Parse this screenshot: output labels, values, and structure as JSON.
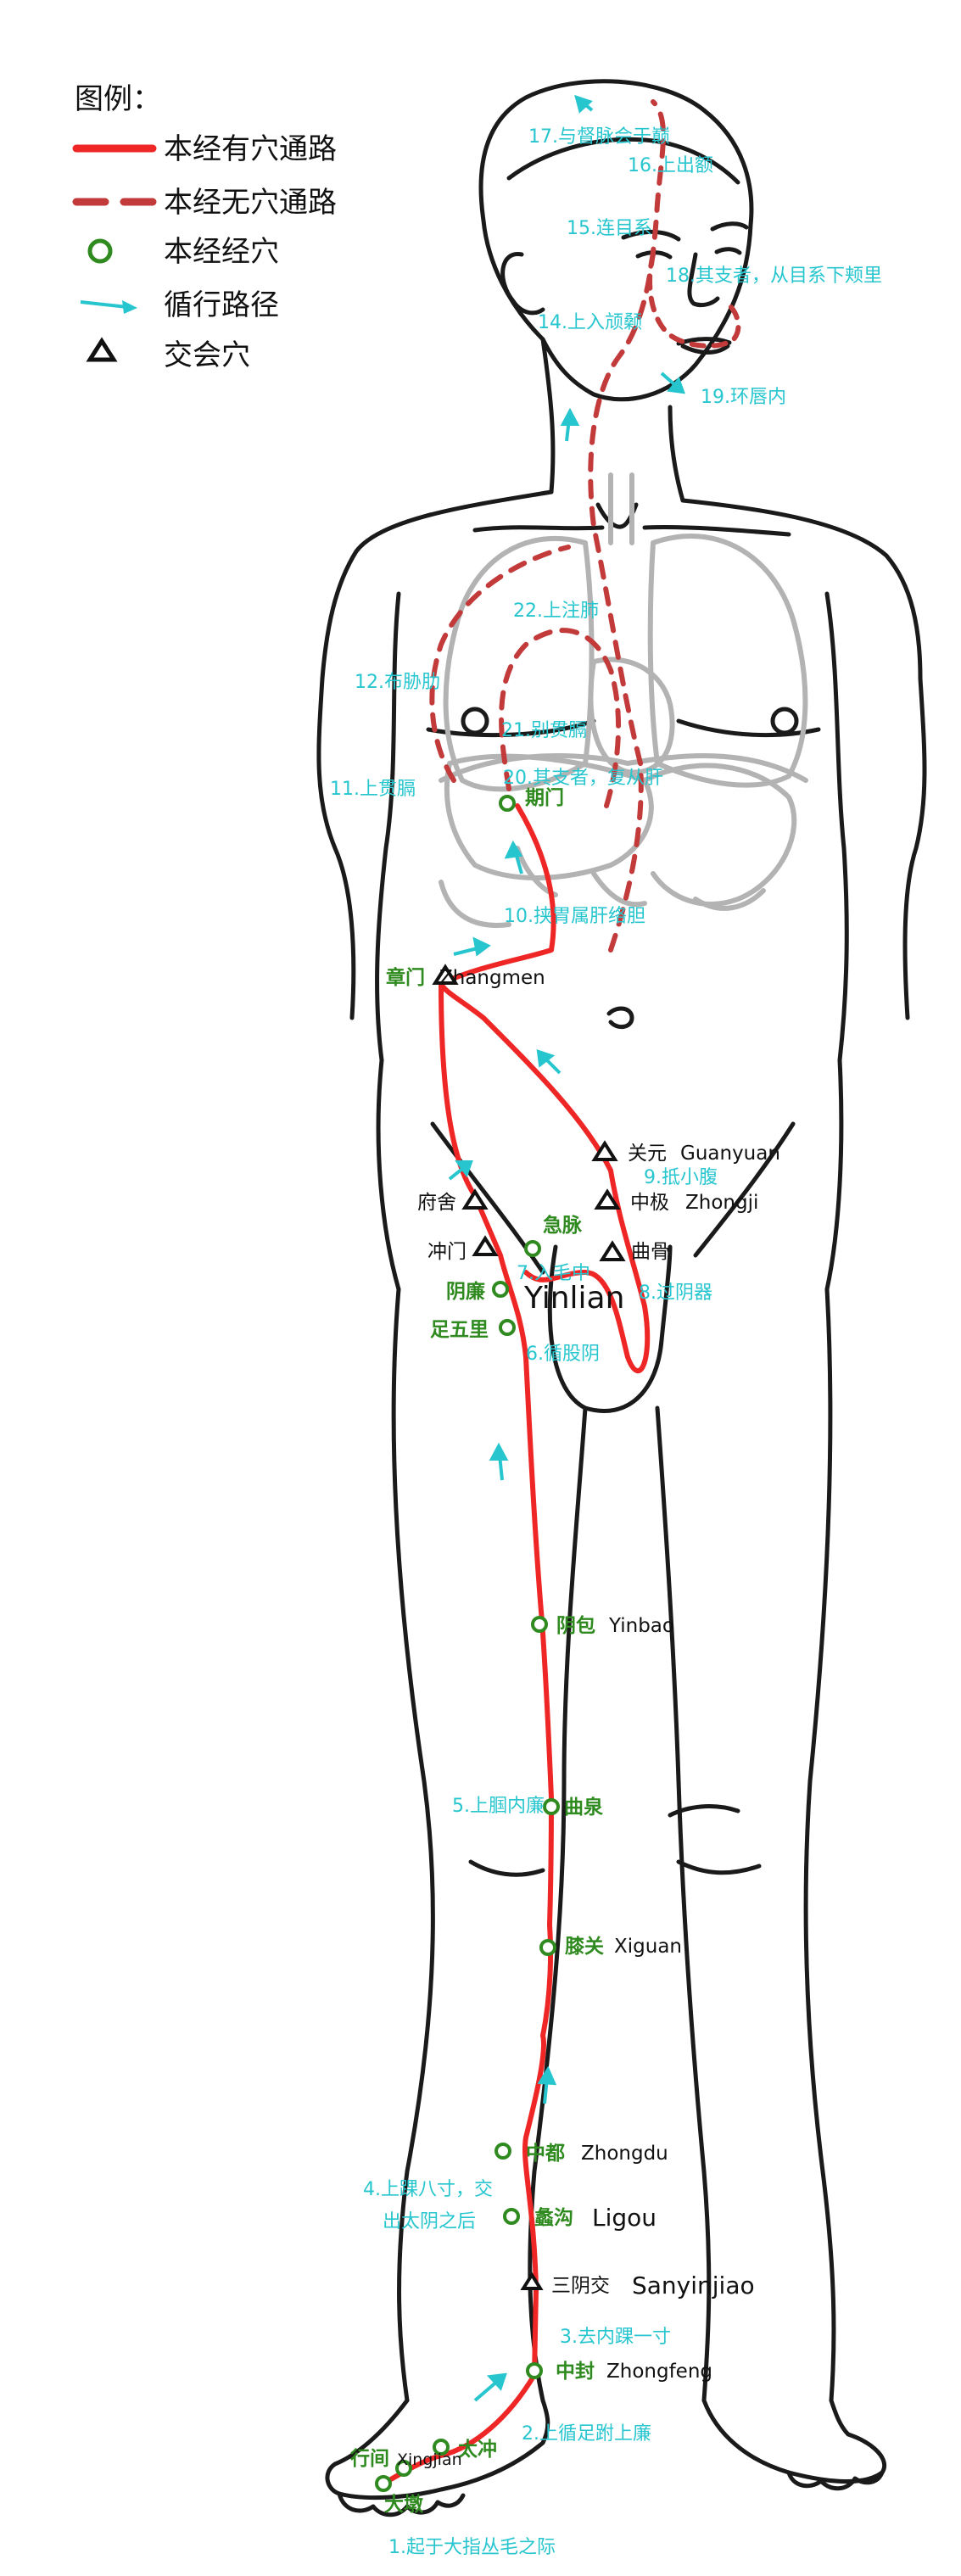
{
  "legend": {
    "title": "图例：",
    "items": [
      {
        "label": "本经有穴通路",
        "icon": "solid-red-line-icon"
      },
      {
        "label": "本经无穴通路",
        "icon": "dashed-red-line-icon"
      },
      {
        "label": "本经经穴",
        "icon": "green-circle-icon"
      },
      {
        "label": "循行路径",
        "icon": "cyan-arrow-icon"
      },
      {
        "label": "交会穴",
        "icon": "triangle-icon"
      }
    ]
  },
  "colors": {
    "solid_path": "#ef2626",
    "dashed_path": "#c23a3a",
    "acupoint": "#2f8a1f",
    "arrow": "#27c6cf",
    "organs": "#b3b3b3",
    "outline": "#1a1a1a"
  },
  "steps": {
    "s1": "1.起于大指丛毛之际",
    "s2": "2.上循足跗上廉",
    "s3": "3.去内踝一寸",
    "s4a": "4.上踝八寸，交",
    "s4b": "出太阴之后",
    "s5": "5.上腘内廉",
    "s6": "6.循股阴",
    "s7": "7.入毛中",
    "s8": "8.过阴器",
    "s9": "9.抵小腹",
    "s10": "10.挟胃属肝络胆",
    "s11": "11.上贯膈",
    "s12": "12.布胁肋",
    "s14": "14.上入颃颡",
    "s15": "15.连目系",
    "s16": "16.上出额",
    "s17": "17.与督脉会于巅",
    "s18": "18.其支者，从目系下颊里",
    "s19": "19.环唇内",
    "s20": "20.其支者，复从肝",
    "s21": "21.别贯膈",
    "s22": "22.上注肺"
  },
  "points": {
    "dadun": "大墩",
    "xingjian_cn": "行间",
    "xingjian_en": "Xingjian",
    "taichong": "太冲",
    "zhongfeng_cn": "中封",
    "zhongfeng_en": "Zhongfeng",
    "sanyinjiao_cn": "三阴交",
    "sanyinjiao_en": "Sanyinjiao",
    "ligou_cn": "蠡沟",
    "ligou_en": "Ligou",
    "zhongdu_cn": "中都",
    "zhongdu_en": "Zhongdu",
    "xiguan_cn": "膝关",
    "xiguan_en": "Xiguan",
    "ququan": "曲泉",
    "yinbao_cn": "阴包",
    "yinbao_en": "Yinbao",
    "zuwuli": "足五里",
    "yinlian_cn": "阴廉",
    "yinlian_en": "Yinlian",
    "jimai": "急脉",
    "chongmen": "冲门",
    "fushe": "府舍",
    "qugu": "曲骨",
    "zhongji_cn": "中极",
    "zhongji_en": "Zhongji",
    "guanyuan_cn": "关元",
    "guanyuan_en": "Guanyuan",
    "zhangmen_cn": "章门",
    "zhangmen_en": "Zhangmen",
    "qimen": "期门"
  }
}
